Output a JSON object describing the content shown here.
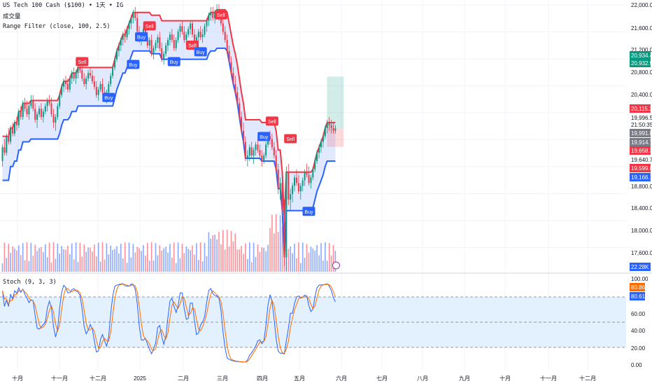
{
  "legend": {
    "symbol_line": "US Tech 100 Cash ($100) • 1天 • IG",
    "volume_label": "成交量",
    "range_filter_label": "Range Filter (close, 100, 2.5)",
    "stoch_label": "Stoch (9, 3, 3)"
  },
  "colors": {
    "up": "#089981",
    "down": "#f23645",
    "range_high": "#f23645",
    "range_low": "#2962ff",
    "fill": "#c7d7fb",
    "stoch_k": "#2962ff",
    "stoch_d": "#ff6d00",
    "stoch_band": "#e3f0fd",
    "grid": "#f0f3fa"
  },
  "chart_data": [
    {
      "type": "candlestick",
      "name": "price",
      "x_axis_labels": [
        "十月",
        "十一月",
        "十二月",
        "2025",
        "二月",
        "三月",
        "四月",
        "五月",
        "六月",
        "七月",
        "八月",
        "九月",
        "十月",
        "十一月",
        "十二月"
      ],
      "y_tick_labels": [
        "22,000.0",
        "21,600.0",
        "21,200.0",
        "20,800.0",
        "20,400.0",
        "19,640.7",
        "18,800.0",
        "18,400.0",
        "18,000.0",
        "17,600.0"
      ],
      "price_badges": [
        {
          "text": "20,934.4",
          "color": "#089981"
        },
        {
          "text": "20,932.9",
          "color": "#089981"
        },
        {
          "text": "20,115.2",
          "color": "#f23645"
        },
        {
          "text": "19,996.5",
          "color": "#ffffff"
        },
        {
          "text": "21:50:35",
          "color": "#ffffff"
        },
        {
          "text": "19,991.8",
          "color": "#787b86"
        },
        {
          "text": "19,914.7",
          "color": "#787b86"
        },
        {
          "text": "19,658.3",
          "color": "#f23645"
        },
        {
          "text": "19,599.8",
          "color": "#f23645"
        },
        {
          "text": "19,166.1",
          "color": "#2962ff"
        },
        {
          "text": "22.28K",
          "color": "#2962ff"
        }
      ],
      "signals": [
        {
          "label": "Sell",
          "bar": 39,
          "value": 21200
        },
        {
          "label": "Buy",
          "bar": 52,
          "value": 20550
        },
        {
          "label": "Buy",
          "bar": 64,
          "value": 21150
        },
        {
          "label": "Sell",
          "bar": 72,
          "value": 21850
        },
        {
          "label": "Buy",
          "bar": 68,
          "value": 21650
        },
        {
          "label": "Buy",
          "bar": 84,
          "value": 21200
        },
        {
          "label": "Sell",
          "bar": 93,
          "value": 21500
        },
        {
          "label": "Buy",
          "bar": 97,
          "value": 21380
        },
        {
          "label": "Sell",
          "bar": 107,
          "value": 22050
        },
        {
          "label": "Sell",
          "bar": 132,
          "value": 20120
        },
        {
          "label": "Buy",
          "bar": 128,
          "value": 19840
        },
        {
          "label": "Sell",
          "bar": 141,
          "value": 19800
        },
        {
          "label": "Buy",
          "bar": 150,
          "value": 18480
        }
      ],
      "ohlc": [
        [
          19400,
          19700,
          19300,
          19650
        ],
        [
          19650,
          19800,
          19500,
          19550
        ],
        [
          19550,
          19900,
          19500,
          19850
        ],
        [
          19850,
          20000,
          19700,
          19750
        ],
        [
          19750,
          20050,
          19700,
          20000
        ],
        [
          20000,
          20100,
          19850,
          19900
        ],
        [
          19900,
          20150,
          19850,
          20100
        ],
        [
          20100,
          20200,
          19950,
          20050
        ],
        [
          20050,
          20350,
          20000,
          20300
        ],
        [
          20300,
          20400,
          20150,
          20200
        ],
        [
          20200,
          20500,
          20150,
          20450
        ],
        [
          20450,
          20550,
          20300,
          20350
        ],
        [
          20350,
          20500,
          20200,
          20250
        ],
        [
          20250,
          20450,
          20150,
          20400
        ],
        [
          20400,
          20600,
          20350,
          20500
        ],
        [
          20500,
          20600,
          20300,
          20350
        ],
        [
          20350,
          20450,
          20100,
          20150
        ],
        [
          20150,
          20300,
          20000,
          20250
        ],
        [
          20250,
          20400,
          20200,
          20350
        ],
        [
          20350,
          20450,
          20150,
          20200
        ],
        [
          20200,
          20350,
          20100,
          20300
        ],
        [
          20300,
          20450,
          20250,
          20400
        ],
        [
          20400,
          20550,
          20300,
          20500
        ],
        [
          20500,
          20600,
          20400,
          20450
        ],
        [
          20450,
          20550,
          20200,
          20250
        ],
        [
          20250,
          20350,
          20000,
          20100
        ],
        [
          20100,
          20250,
          19950,
          20200
        ],
        [
          20200,
          20450,
          20150,
          20400
        ],
        [
          20400,
          20650,
          20350,
          20600
        ],
        [
          20600,
          20800,
          20550,
          20750
        ],
        [
          20750,
          20900,
          20650,
          20850
        ],
        [
          20850,
          20950,
          20700,
          20800
        ],
        [
          20800,
          20900,
          20650,
          20700
        ],
        [
          20700,
          20950,
          20650,
          20900
        ],
        [
          20900,
          21050,
          20800,
          21000
        ],
        [
          21000,
          21100,
          20850,
          20900
        ],
        [
          20900,
          21050,
          20800,
          21000
        ],
        [
          21000,
          21150,
          20900,
          21100
        ],
        [
          21100,
          21250,
          21000,
          21050
        ],
        [
          21050,
          21150,
          20850,
          20900
        ],
        [
          20900,
          21000,
          20750,
          20800
        ],
        [
          20800,
          20950,
          20700,
          20900
        ],
        [
          20900,
          21050,
          20850,
          21000
        ],
        [
          21000,
          21100,
          20900,
          20950
        ],
        [
          20950,
          21050,
          20800,
          20850
        ],
        [
          20850,
          20950,
          20700,
          20750
        ],
        [
          20750,
          20850,
          20550,
          20600
        ],
        [
          20600,
          20750,
          20500,
          20700
        ],
        [
          20700,
          20850,
          20650,
          20800
        ],
        [
          20800,
          20900,
          20600,
          20650
        ],
        [
          20650,
          20750,
          20500,
          20550
        ],
        [
          20550,
          20700,
          20450,
          20650
        ],
        [
          20650,
          20850,
          20600,
          20800
        ],
        [
          20800,
          21000,
          20750,
          20950
        ],
        [
          20950,
          21150,
          20900,
          21100
        ],
        [
          21100,
          21300,
          21050,
          21250
        ],
        [
          21250,
          21450,
          21200,
          21400
        ],
        [
          21400,
          21550,
          21300,
          21500
        ],
        [
          21500,
          21650,
          21400,
          21600
        ],
        [
          21600,
          21750,
          21500,
          21700
        ],
        [
          21700,
          21800,
          21550,
          21650
        ],
        [
          21650,
          21850,
          21600,
          21800
        ],
        [
          21800,
          21950,
          21700,
          21900
        ],
        [
          21900,
          22050,
          21800,
          22000
        ],
        [
          22000,
          22150,
          21900,
          22100
        ],
        [
          22100,
          22200,
          21950,
          22000
        ],
        [
          22000,
          22100,
          21700,
          21750
        ],
        [
          21750,
          21850,
          21550,
          21600
        ],
        [
          21600,
          21750,
          21500,
          21700
        ],
        [
          21700,
          21850,
          21600,
          21800
        ],
        [
          21800,
          21900,
          21600,
          21650
        ],
        [
          21650,
          21750,
          21450,
          21500
        ],
        [
          21500,
          21650,
          21400,
          21600
        ],
        [
          21600,
          21700,
          21300,
          21350
        ],
        [
          21350,
          21500,
          21250,
          21450
        ],
        [
          21450,
          21600,
          21400,
          21550
        ],
        [
          21550,
          21700,
          21450,
          21650
        ],
        [
          21650,
          21750,
          21400,
          21450
        ],
        [
          21450,
          21550,
          21200,
          21250
        ],
        [
          21250,
          21400,
          21150,
          21350
        ],
        [
          21350,
          21550,
          21300,
          21500
        ],
        [
          21500,
          21650,
          21400,
          21600
        ],
        [
          21600,
          21750,
          21500,
          21700
        ],
        [
          21700,
          21800,
          21550,
          21600
        ],
        [
          21600,
          21700,
          21400,
          21450
        ],
        [
          21450,
          21650,
          21400,
          21600
        ],
        [
          21600,
          21800,
          21550,
          21750
        ],
        [
          21750,
          21900,
          21650,
          21850
        ],
        [
          21850,
          21950,
          21700,
          21750
        ],
        [
          21750,
          21850,
          21550,
          21600
        ],
        [
          21600,
          21750,
          21500,
          21700
        ],
        [
          21700,
          21850,
          21650,
          21800
        ],
        [
          21800,
          21950,
          21700,
          21900
        ],
        [
          21900,
          21950,
          21650,
          21700
        ],
        [
          21700,
          21800,
          21500,
          21550
        ],
        [
          21550,
          21700,
          21450,
          21650
        ],
        [
          21650,
          21800,
          21550,
          21750
        ],
        [
          21750,
          21850,
          21600,
          21650
        ],
        [
          21650,
          21800,
          21550,
          21700
        ],
        [
          21700,
          21900,
          21650,
          21850
        ],
        [
          21850,
          22000,
          21750,
          21950
        ],
        [
          21950,
          22100,
          21850,
          22050
        ],
        [
          22050,
          22200,
          21950,
          22100
        ],
        [
          22100,
          22200,
          21950,
          22000
        ],
        [
          22000,
          22150,
          21900,
          22100
        ],
        [
          22100,
          22250,
          22000,
          22150
        ],
        [
          22150,
          22250,
          21950,
          22000
        ],
        [
          22000,
          22100,
          21850,
          21900
        ],
        [
          21900,
          22000,
          21700,
          21750
        ],
        [
          21750,
          21850,
          21550,
          21600
        ],
        [
          21600,
          21700,
          21350,
          21400
        ],
        [
          21400,
          21500,
          21150,
          21200
        ],
        [
          21200,
          21300,
          20950,
          21000
        ],
        [
          21000,
          21100,
          20750,
          20800
        ],
        [
          20800,
          20950,
          20600,
          20650
        ],
        [
          20650,
          20750,
          20400,
          20450
        ],
        [
          20450,
          20550,
          20150,
          20200
        ],
        [
          20200,
          20300,
          19900,
          19950
        ],
        [
          19950,
          20100,
          19700,
          19750
        ],
        [
          19750,
          19850,
          19400,
          19450
        ],
        [
          19450,
          19600,
          19300,
          19500
        ],
        [
          19500,
          19700,
          19400,
          19650
        ],
        [
          19650,
          19750,
          19450,
          19500
        ],
        [
          19500,
          19650,
          19350,
          19600
        ],
        [
          19600,
          19750,
          19500,
          19700
        ],
        [
          19700,
          19800,
          19550,
          19600
        ],
        [
          19600,
          19700,
          19450,
          19500
        ],
        [
          19500,
          19600,
          19300,
          19400
        ],
        [
          19400,
          19550,
          19350,
          19500
        ],
        [
          19500,
          19750,
          19450,
          19700
        ],
        [
          19700,
          19900,
          19650,
          19850
        ],
        [
          19850,
          19950,
          19700,
          19800
        ],
        [
          19800,
          19900,
          19600,
          19650
        ],
        [
          19650,
          19750,
          19450,
          19500
        ],
        [
          19500,
          19600,
          19200,
          19250
        ],
        [
          19250,
          19350,
          18800,
          18900
        ],
        [
          18900,
          19100,
          18700,
          19000
        ],
        [
          19000,
          19150,
          18400,
          18500
        ],
        [
          18500,
          18700,
          17500,
          17650
        ],
        [
          17650,
          19300,
          17400,
          19200
        ],
        [
          19200,
          19350,
          18600,
          18700
        ],
        [
          18700,
          18900,
          18500,
          18800
        ],
        [
          18800,
          19000,
          18650,
          18950
        ],
        [
          18950,
          19150,
          18850,
          19100
        ],
        [
          19100,
          19250,
          18950,
          19000
        ],
        [
          19000,
          19150,
          18800,
          18850
        ],
        [
          18850,
          19000,
          18700,
          18950
        ],
        [
          18950,
          19100,
          18850,
          19050
        ],
        [
          19050,
          19250,
          18950,
          19200
        ],
        [
          19200,
          19350,
          19100,
          19150
        ],
        [
          19150,
          19300,
          18950,
          19000
        ],
        [
          19000,
          19150,
          18900,
          19100
        ],
        [
          19100,
          19300,
          19050,
          19250
        ],
        [
          19250,
          19450,
          19200,
          19400
        ],
        [
          19400,
          19600,
          19350,
          19550
        ],
        [
          19550,
          19700,
          19450,
          19650
        ],
        [
          19650,
          19800,
          19550,
          19750
        ],
        [
          19750,
          19900,
          19650,
          19850
        ],
        [
          19850,
          20050,
          19800,
          20000
        ],
        [
          20000,
          20150,
          19900,
          20100
        ],
        [
          20100,
          20200,
          19950,
          20050
        ],
        [
          20050,
          20150,
          19900,
          20000
        ],
        [
          20000,
          20100,
          19900,
          19950
        ],
        [
          19950,
          20050,
          19900,
          19992
        ]
      ]
    },
    {
      "type": "line",
      "name": "stoch",
      "y_tick_labels": [
        "100.00",
        "80.86",
        "80.61",
        "60.00",
        "40.00",
        "20.00",
        "0.00"
      ],
      "series": [
        {
          "name": "%K"
        },
        {
          "name": "%D"
        }
      ],
      "ylim": [
        0,
        100
      ],
      "levels": [
        80,
        50,
        20
      ]
    }
  ]
}
